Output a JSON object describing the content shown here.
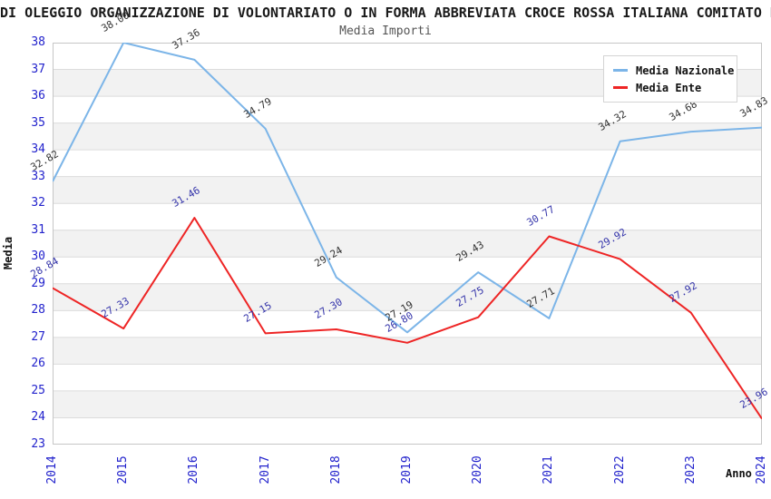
{
  "chart_data": {
    "type": "line",
    "title": "DI OLEGGIO ORGANIZZAZIONE DI VOLONTARIATO O IN FORMA ABBREVIATA CROCE ROSSA ITALIANA COMITATO D",
    "subtitle": "Media Importi",
    "xlabel": "Anno",
    "ylabel": "Media",
    "x": [
      2014,
      2015,
      2016,
      2017,
      2018,
      2019,
      2020,
      2021,
      2022,
      2023,
      2024
    ],
    "series": [
      {
        "name": "Media Nazionale",
        "values": [
          32.82,
          38.0,
          37.36,
          34.79,
          29.24,
          27.19,
          29.43,
          27.71,
          34.32,
          34.68,
          34.83
        ],
        "color": "#7cb5e8",
        "label_color": "#333333"
      },
      {
        "name": "Media Ente",
        "values": [
          28.84,
          27.33,
          31.46,
          27.15,
          27.3,
          26.8,
          27.75,
          30.77,
          29.92,
          27.92,
          23.96
        ],
        "color": "#ee2525",
        "label_color": "#3434aa"
      }
    ],
    "ylim": [
      23,
      38
    ],
    "ytick_step": 1,
    "grid": true,
    "interlaced_bands": true,
    "legend_position": "top-right",
    "colors": {
      "axis_tick_label": "#2222cc",
      "gridline": "#dcdcdc",
      "band_fill": "#f2f2f2",
      "plot_border": "#c6c6c6"
    }
  }
}
